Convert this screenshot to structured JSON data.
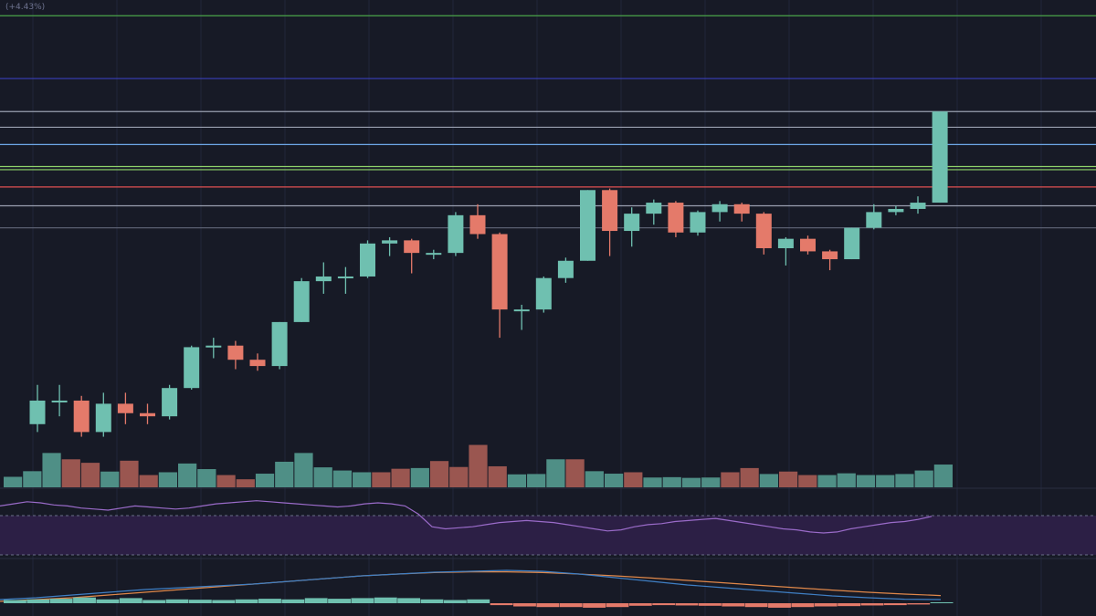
{
  "header": {
    "change_text": "(+4.43%)"
  },
  "colors": {
    "background": "#171a26",
    "bull": "#6fc0b0",
    "bear": "#e47a6a",
    "bull_volume": "#4f8f86",
    "bear_volume": "#9a5650",
    "grid": "#22263a",
    "rsi_line": "#9a6bc9",
    "rsi_band": "#2c1f45",
    "macd_line": "#3f7fc4",
    "signal_line": "#e0884a",
    "hist_up": "#6fc0b0",
    "hist_down": "#e47a6a"
  },
  "chart_data": {
    "type": "candlestick",
    "candles": [
      {
        "o": 0.5,
        "h": 3.0,
        "l": 0.0,
        "c": 2.0
      },
      {
        "o": 2.0,
        "h": 3.0,
        "l": 1.0,
        "c": 2.0
      },
      {
        "o": 2.0,
        "h": 2.3,
        "l": -0.3,
        "c": 0.0
      },
      {
        "o": 0.0,
        "h": 2.5,
        "l": -0.3,
        "c": 1.8
      },
      {
        "o": 1.8,
        "h": 2.5,
        "l": 0.5,
        "c": 1.2
      },
      {
        "o": 1.2,
        "h": 1.8,
        "l": 0.5,
        "c": 1.0
      },
      {
        "o": 1.0,
        "h": 3.0,
        "l": 0.8,
        "c": 2.8
      },
      {
        "o": 2.8,
        "h": 5.5,
        "l": 2.7,
        "c": 5.4
      },
      {
        "o": 5.4,
        "h": 6.0,
        "l": 4.7,
        "c": 5.5
      },
      {
        "o": 5.5,
        "h": 5.8,
        "l": 4.0,
        "c": 4.6
      },
      {
        "o": 4.6,
        "h": 5.0,
        "l": 3.9,
        "c": 4.2
      },
      {
        "o": 4.2,
        "h": 7.0,
        "l": 4.0,
        "c": 7.0
      },
      {
        "o": 7.0,
        "h": 9.8,
        "l": 7.0,
        "c": 9.6
      },
      {
        "o": 9.6,
        "h": 10.8,
        "l": 8.8,
        "c": 9.9
      },
      {
        "o": 9.9,
        "h": 10.5,
        "l": 8.8,
        "c": 9.9
      },
      {
        "o": 9.9,
        "h": 12.2,
        "l": 9.8,
        "c": 12.0
      },
      {
        "o": 12.0,
        "h": 12.4,
        "l": 11.2,
        "c": 12.2
      },
      {
        "o": 12.2,
        "h": 12.3,
        "l": 10.1,
        "c": 11.4
      },
      {
        "o": 11.4,
        "h": 11.6,
        "l": 11.0,
        "c": 11.4
      },
      {
        "o": 11.4,
        "h": 14.0,
        "l": 11.2,
        "c": 13.8
      },
      {
        "o": 13.8,
        "h": 14.5,
        "l": 12.3,
        "c": 12.6
      },
      {
        "o": 12.6,
        "h": 12.7,
        "l": 6.0,
        "c": 7.8
      },
      {
        "o": 7.8,
        "h": 8.1,
        "l": 6.5,
        "c": 7.8
      },
      {
        "o": 7.8,
        "h": 9.9,
        "l": 7.6,
        "c": 9.8
      },
      {
        "o": 9.8,
        "h": 11.1,
        "l": 9.5,
        "c": 10.9
      },
      {
        "o": 10.9,
        "h": 15.4,
        "l": 10.9,
        "c": 15.4
      },
      {
        "o": 15.4,
        "h": 15.5,
        "l": 11.2,
        "c": 12.8
      },
      {
        "o": 12.8,
        "h": 14.3,
        "l": 11.8,
        "c": 13.9
      },
      {
        "o": 13.9,
        "h": 14.8,
        "l": 13.2,
        "c": 14.6
      },
      {
        "o": 14.6,
        "h": 14.7,
        "l": 12.4,
        "c": 12.7
      },
      {
        "o": 12.7,
        "h": 14.1,
        "l": 12.5,
        "c": 14.0
      },
      {
        "o": 14.0,
        "h": 14.7,
        "l": 13.4,
        "c": 14.5
      },
      {
        "o": 14.5,
        "h": 14.6,
        "l": 13.4,
        "c": 13.9
      },
      {
        "o": 13.9,
        "h": 14.0,
        "l": 11.3,
        "c": 11.7
      },
      {
        "o": 11.7,
        "h": 12.4,
        "l": 10.6,
        "c": 12.3
      },
      {
        "o": 12.3,
        "h": 12.5,
        "l": 11.3,
        "c": 11.5
      },
      {
        "o": 11.5,
        "h": 11.6,
        "l": 10.3,
        "c": 11.0
      },
      {
        "o": 11.0,
        "h": 13.0,
        "l": 11.0,
        "c": 13.0
      },
      {
        "o": 13.0,
        "h": 14.5,
        "l": 12.9,
        "c": 14.0
      },
      {
        "o": 14.0,
        "h": 14.4,
        "l": 13.8,
        "c": 14.2
      },
      {
        "o": 14.2,
        "h": 15.0,
        "l": 13.9,
        "c": 14.6
      },
      {
        "o": 14.6,
        "h": 20.4,
        "l": 14.6,
        "c": 20.4
      }
    ],
    "volumes": [
      0.3,
      0.46,
      0.98,
      0.8,
      0.7,
      0.45,
      0.76,
      0.35,
      0.43,
      0.68,
      0.52,
      0.35,
      0.23,
      0.39,
      0.73,
      0.98,
      0.57,
      0.48,
      0.43,
      0.43,
      0.53,
      0.55,
      0.75,
      0.58,
      1.21,
      0.6,
      0.37,
      0.38,
      0.8,
      0.8,
      0.46,
      0.39,
      0.43,
      0.28,
      0.29,
      0.27,
      0.28,
      0.43,
      0.55,
      0.38,
      0.45,
      0.35,
      0.35,
      0.4,
      0.35,
      0.35,
      0.38,
      0.48,
      0.65
    ],
    "volume_up": [
      true,
      true,
      true,
      false,
      false,
      true,
      false,
      false,
      true,
      true,
      true,
      false,
      false,
      true,
      true,
      true,
      true,
      true,
      true,
      false,
      false,
      true,
      false,
      false,
      false,
      false,
      true,
      true,
      true,
      false,
      true,
      true,
      false,
      true,
      true,
      true,
      true,
      false,
      false,
      true,
      false,
      false,
      true,
      true,
      true,
      true,
      true,
      true,
      true
    ],
    "overlay_levels": [
      {
        "value": 26.5,
        "color": "#4aa34a"
      },
      {
        "value": 22.5,
        "color": "#3a3fb8"
      },
      {
        "value": 20.4,
        "color": "#9aa0b0"
      },
      {
        "value": 19.4,
        "color": "#9aa0b0"
      },
      {
        "value": 18.3,
        "color": "#6ea8e8"
      },
      {
        "value": 16.9,
        "color": "#8fd46a"
      },
      {
        "value": 16.7,
        "color": "#8fd46a"
      },
      {
        "value": 15.6,
        "color": "#e05050"
      },
      {
        "value": 14.4,
        "color": "#9aa0b0"
      },
      {
        "value": 13.0,
        "color": "#5a5f70"
      }
    ],
    "rsi": [
      70,
      72,
      74,
      73,
      71,
      70,
      68,
      67,
      66,
      68,
      70,
      69,
      68,
      67,
      68,
      70,
      72,
      73,
      74,
      75,
      74,
      73,
      72,
      71,
      70,
      69,
      70,
      72,
      73,
      72,
      70,
      62,
      50,
      48,
      49,
      50,
      52,
      54,
      55,
      56,
      55,
      54,
      52,
      50,
      48,
      46,
      47,
      50,
      52,
      53,
      55,
      56,
      57,
      58,
      56,
      54,
      52,
      50,
      48,
      47,
      45,
      44,
      45,
      48,
      50,
      52,
      54,
      55,
      57,
      60
    ],
    "macd": [
      0.2,
      0.3,
      0.45,
      0.6,
      0.75,
      0.85,
      0.95,
      1.05,
      1.2,
      1.35,
      1.5,
      1.6,
      1.7,
      1.75,
      1.8,
      1.75,
      1.6,
      1.4,
      1.2,
      1.0,
      0.85,
      0.7,
      0.55,
      0.4,
      0.3,
      0.22,
      0.2
    ],
    "signal": [
      0.1,
      0.2,
      0.3,
      0.45,
      0.6,
      0.75,
      0.9,
      1.05,
      1.2,
      1.35,
      1.5,
      1.6,
      1.68,
      1.72,
      1.72,
      1.68,
      1.6,
      1.5,
      1.38,
      1.25,
      1.12,
      0.98,
      0.85,
      0.72,
      0.6,
      0.5,
      0.42
    ],
    "hist": [
      0.5,
      0.6,
      0.7,
      0.9,
      0.6,
      0.8,
      0.5,
      0.6,
      0.55,
      0.5,
      0.6,
      0.7,
      0.6,
      0.8,
      0.7,
      0.8,
      0.9,
      0.8,
      0.6,
      0.5,
      0.6,
      -0.3,
      -0.5,
      -0.6,
      -0.6,
      -0.7,
      -0.6,
      -0.4,
      -0.3,
      -0.35,
      -0.4,
      -0.5,
      -0.6,
      -0.7,
      -0.6,
      -0.5,
      -0.45,
      -0.35,
      -0.3,
      -0.2,
      0.15
    ]
  }
}
